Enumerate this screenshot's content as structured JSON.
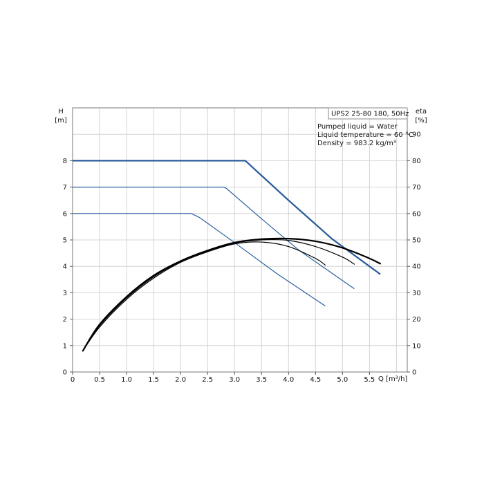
{
  "chart_data": {
    "type": "line",
    "title": "UPS2 25-80 180, 50Hz",
    "info_lines": [
      "Pumped liquid = Water",
      "Liquid temperature = 60 °C",
      "Density = 983.2 kg/m³"
    ],
    "xlabel": "Q [m³/h]",
    "ylabel_left_name": "H",
    "ylabel_left_unit": "[m]",
    "ylabel_right_name": "eta",
    "ylabel_right_unit": "[%]",
    "xlim": [
      0,
      6.2
    ],
    "ylim_left": [
      0,
      10
    ],
    "ylim_right": [
      0,
      100
    ],
    "x_ticks": [
      "0",
      "0.5",
      "1.0",
      "1.5",
      "2.0",
      "2.5",
      "3.0",
      "3.5",
      "4.0",
      "4.5",
      "5.0",
      "5.5"
    ],
    "x_tick_values": [
      0,
      0.5,
      1.0,
      1.5,
      2.0,
      2.5,
      3.0,
      3.5,
      4.0,
      4.5,
      5.0,
      5.5
    ],
    "y_left_ticks": [
      0,
      1,
      2,
      3,
      4,
      5,
      6,
      7,
      8
    ],
    "y_right_ticks": [
      0,
      10,
      20,
      30,
      40,
      50,
      60,
      70,
      80,
      90
    ],
    "grid": true,
    "head_curves": [
      {
        "color": "#1f4e8c",
        "width": 2.2,
        "points": [
          [
            0,
            8
          ],
          [
            3.2,
            8
          ],
          [
            4.0,
            6.5
          ],
          [
            4.8,
            5.05
          ],
          [
            5.7,
            3.7
          ]
        ]
      },
      {
        "color": "#2a5fa0",
        "width": 1.2,
        "points": [
          [
            0,
            8
          ],
          [
            3.2,
            8
          ],
          [
            4.0,
            6.5
          ],
          [
            4.8,
            5.05
          ],
          [
            5.68,
            3.72
          ]
        ]
      },
      {
        "color": "#2a5fa0",
        "width": 1.2,
        "points": [
          [
            0,
            7
          ],
          [
            2.8,
            7
          ],
          [
            2.85,
            6.95
          ],
          [
            3.5,
            5.8
          ],
          [
            4.2,
            4.6
          ],
          [
            5.22,
            3.15
          ]
        ]
      },
      {
        "color": "#2a5fa0",
        "width": 1.2,
        "points": [
          [
            0,
            6
          ],
          [
            2.2,
            6
          ],
          [
            2.35,
            5.85
          ],
          [
            3.0,
            4.9
          ],
          [
            3.8,
            3.7
          ],
          [
            4.68,
            2.5
          ]
        ]
      }
    ],
    "efficiency_curves": [
      {
        "color": "#000000",
        "width": 2.2,
        "points": [
          [
            0.19,
            8
          ],
          [
            0.5,
            18
          ],
          [
            1.0,
            28.5
          ],
          [
            1.5,
            36.5
          ],
          [
            2.0,
            42
          ],
          [
            2.5,
            46
          ],
          [
            3.0,
            49
          ],
          [
            3.5,
            50.3
          ],
          [
            4.0,
            50.5
          ],
          [
            4.5,
            49.5
          ],
          [
            5.0,
            47
          ],
          [
            5.5,
            43
          ],
          [
            5.7,
            41
          ]
        ]
      },
      {
        "color": "#000000",
        "width": 1.2,
        "points": [
          [
            0.19,
            8
          ],
          [
            0.5,
            17.5
          ],
          [
            1.0,
            28
          ],
          [
            1.5,
            36
          ],
          [
            2.0,
            41.8
          ],
          [
            2.5,
            45.8
          ],
          [
            3.0,
            48.8
          ],
          [
            3.5,
            50
          ],
          [
            4.0,
            49.8
          ],
          [
            4.5,
            47.5
          ],
          [
            5.0,
            43.5
          ],
          [
            5.22,
            40.8
          ]
        ]
      },
      {
        "color": "#000000",
        "width": 1.2,
        "points": [
          [
            0.19,
            8
          ],
          [
            0.5,
            17
          ],
          [
            1.0,
            27.5
          ],
          [
            1.5,
            35.5
          ],
          [
            2.0,
            41.5
          ],
          [
            2.5,
            45.5
          ],
          [
            3.0,
            48.5
          ],
          [
            3.5,
            49.2
          ],
          [
            4.0,
            47.5
          ],
          [
            4.5,
            43
          ],
          [
            4.68,
            40.5
          ]
        ]
      }
    ]
  }
}
